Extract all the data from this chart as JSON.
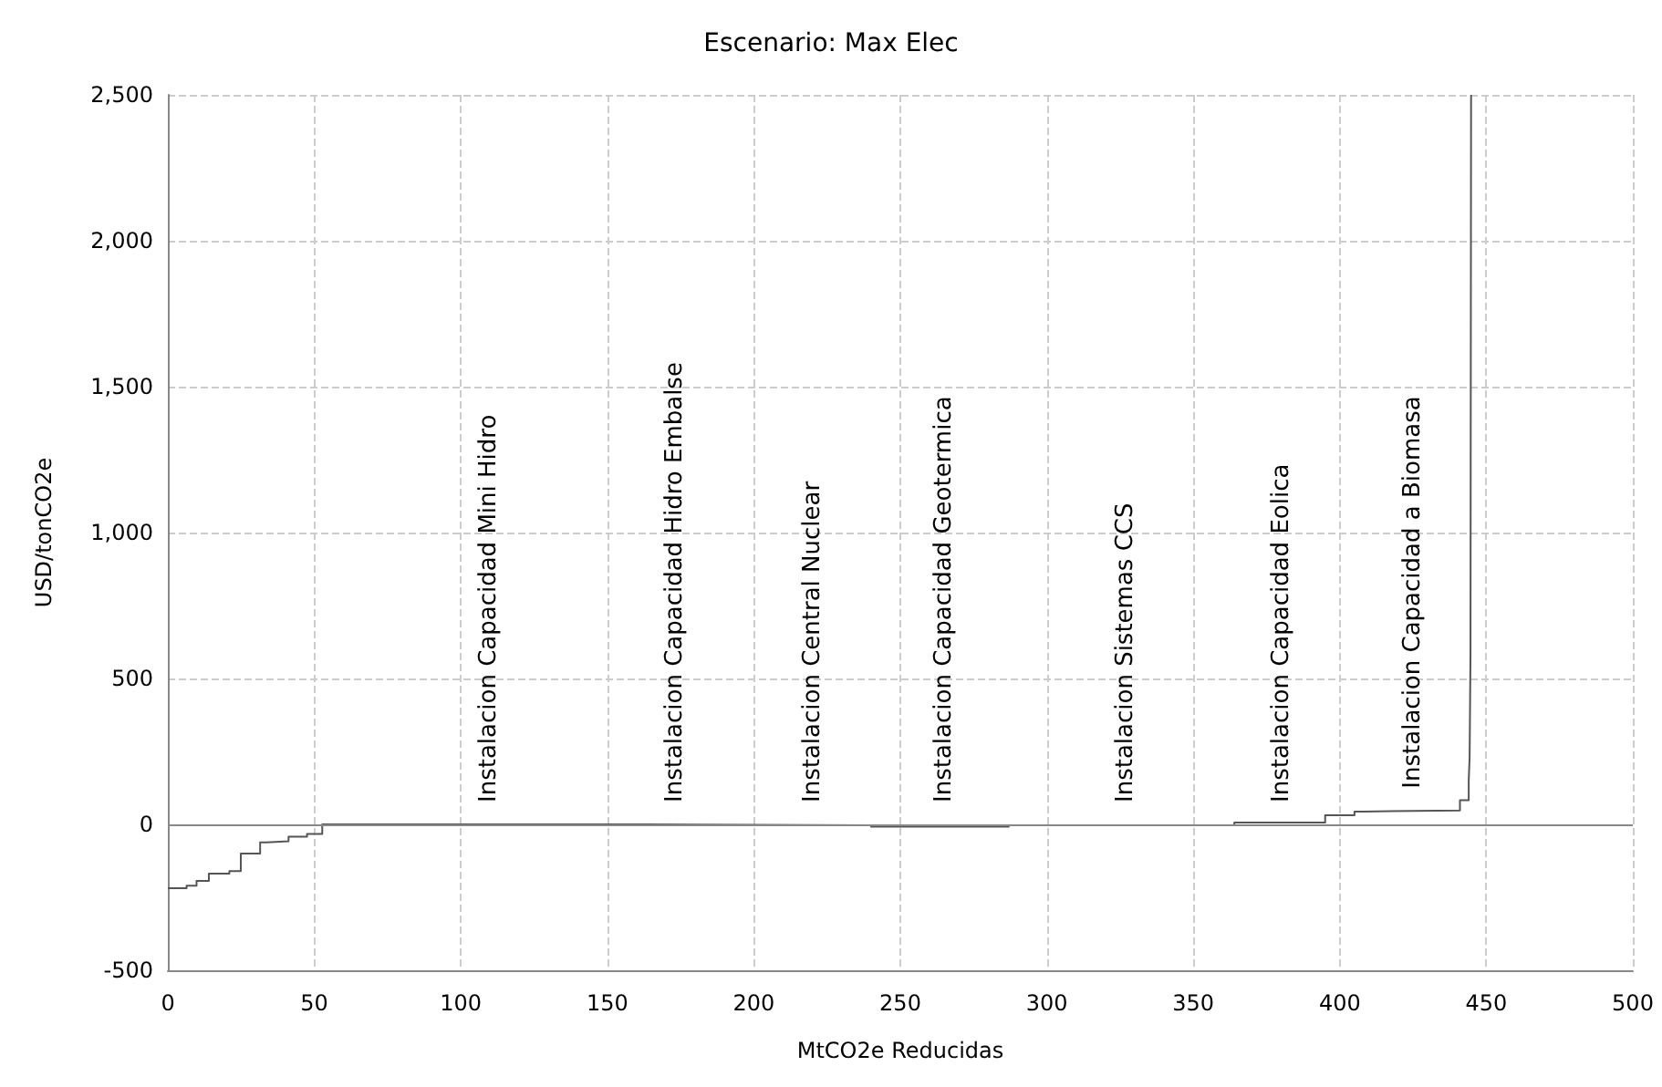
{
  "chart_data": {
    "type": "step",
    "title": "Escenario: Max Elec",
    "xlabel": "MtCO2e Reducidas",
    "ylabel": "USD/tonCO2e",
    "x": [
      0,
      6.4,
      9.8,
      14,
      21,
      24.9,
      31.5,
      33.7,
      41.2,
      47.5,
      52.7,
      162.5,
      240,
      287,
      364,
      395,
      405,
      408,
      441,
      444,
      444.3,
      444.6,
      444.8,
      445.2
    ],
    "series": [
      {
        "color": "#555555",
        "values": [
          -219,
          -210,
          -194,
          -169,
          -160,
          -100,
          -62,
          -58,
          -42,
          -33,
          0,
          -3,
          -8,
          -3,
          6,
          31,
          44,
          48,
          83,
          150,
          230,
          580,
          2500,
          2500
        ]
      }
    ],
    "xlim": [
      0,
      500
    ],
    "xticks": [
      0,
      50,
      100,
      150,
      200,
      250,
      300,
      350,
      400,
      450,
      500
    ],
    "ylim": [
      -500,
      2500
    ],
    "yticks": [
      {
        "value": -500,
        "label": "-500"
      },
      0,
      500,
      {
        "value": 1000,
        "label": "1,000"
      },
      {
        "value": 1500,
        "label": "1,500"
      },
      {
        "value": 2000,
        "label": "2,000"
      },
      {
        "value": 2500,
        "label": "2,500"
      }
    ],
    "grid": true,
    "marker": "none",
    "line_style": "solid",
    "annotations": [
      {
        "text": "Instalacion Capacidad Mini Hidro",
        "x": 109.6,
        "y": 0
      },
      {
        "text": "Instalacion Capacidad Hidro Embalse",
        "x": 173,
        "y": 0
      },
      {
        "text": "Instalacion Central Nuclear",
        "x": 220,
        "y": 0
      },
      {
        "text": "Instalacion Capacidad Geotermica",
        "x": 265,
        "y": 0
      },
      {
        "text": "Instalacion Sistemas CCS",
        "x": 327,
        "y": 0
      },
      {
        "text": "Instalacion Capacidad Eolica",
        "x": 380,
        "y": 0
      },
      {
        "text": "Instalacion Capacidad a Biomasa",
        "x": 425,
        "y": 48
      }
    ]
  }
}
